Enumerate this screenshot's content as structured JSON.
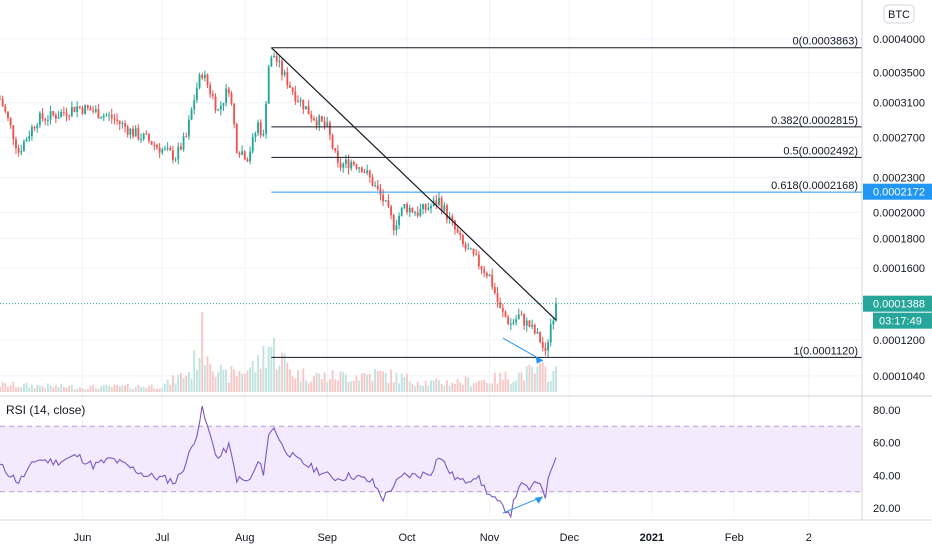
{
  "symbol_badge": "BTC",
  "colors": {
    "up": "#26a69a",
    "down": "#ef5350",
    "up_vol": "#bfe3df",
    "down_vol": "#f7c7c5",
    "fib": "#131722",
    "fib_highlight": "#2196f3",
    "last_price": "#26a69a",
    "countdown": "#26a69a",
    "rsi_line": "#7e57c2",
    "rsi_band": "#f3ebfd",
    "divergence": "#2196f3",
    "grid": "#f0f3fa",
    "axis_text": "#131722"
  },
  "price_axis": {
    "scale": "log",
    "range": [
      9.75e-05,
      0.000418
    ],
    "ticks": [
      "0.0004000",
      "0.0003500",
      "0.0003100",
      "0.0002700",
      "0.0002300",
      "0.0002000",
      "0.0001800",
      "0.0001600",
      "0.0001200",
      "0.0001040"
    ],
    "highlight_label": "0.0002172",
    "last_price_label": "0.0001388",
    "countdown_label": "03:17:49",
    "last_price_value": 0.0001388
  },
  "fib_levels": [
    {
      "label": "0(0.0003863)",
      "value": 0.0003863
    },
    {
      "label": "0.382(0.0002815)",
      "value": 0.0002815
    },
    {
      "label": "0.5(0.0002492)",
      "value": 0.0002492
    },
    {
      "label": "0.618(0.0002168)",
      "value": 0.0002168
    },
    {
      "label": "1(0.0001120)",
      "value": 0.000112
    }
  ],
  "fib_start_date": "2020-08-11",
  "trendline": {
    "start": [
      "2020-08-11",
      0.0003863
    ],
    "end": [
      "2020-11-26",
      0.00013
    ]
  },
  "price_divergence": {
    "start": [
      "2020-11-06",
      0.000121
    ],
    "end": [
      "2020-11-21",
      0.0001105
    ]
  },
  "rsi": {
    "title": "RSI (14, close)",
    "range": [
      14,
      86
    ],
    "ticks": [
      "80.00",
      "60.00",
      "40.00",
      "20.00"
    ],
    "band": [
      30,
      70
    ],
    "divergence": {
      "start": [
        "2020-11-06",
        17
      ],
      "end": [
        "2020-11-21",
        27
      ]
    }
  },
  "time_axis": {
    "range": [
      "2020-05-01",
      "2021-03-21"
    ],
    "ticks": [
      {
        "label": "Jun",
        "date": "2020-06-01"
      },
      {
        "label": "Jul",
        "date": "2020-07-01"
      },
      {
        "label": "Aug",
        "date": "2020-08-01"
      },
      {
        "label": "Sep",
        "date": "2020-09-01"
      },
      {
        "label": "Oct",
        "date": "2020-10-01"
      },
      {
        "label": "Nov",
        "date": "2020-11-01"
      },
      {
        "label": "Dec",
        "date": "2020-12-01"
      },
      {
        "label": "2021",
        "date": "2021-01-01"
      },
      {
        "label": "Feb",
        "date": "2021-02-01"
      },
      {
        "label": "2",
        "date": "2021-03-01"
      }
    ]
  },
  "chart_data": {
    "type": "candlestick",
    "title": "",
    "first_date": "2020-05-01",
    "interval": "1D",
    "price_anchors": [
      [
        "2020-05-01",
        0.000315
      ],
      [
        "2020-05-08",
        0.000255
      ],
      [
        "2020-05-15",
        0.00029
      ],
      [
        "2020-05-22",
        0.000295
      ],
      [
        "2020-05-30",
        0.000305
      ],
      [
        "2020-06-05",
        0.0003
      ],
      [
        "2020-06-12",
        0.000292
      ],
      [
        "2020-06-20",
        0.000275
      ],
      [
        "2020-06-25",
        0.000268
      ],
      [
        "2020-07-02",
        0.000255
      ],
      [
        "2020-07-06",
        0.00025
      ],
      [
        "2020-07-10",
        0.00027
      ],
      [
        "2020-07-14",
        0.00033
      ],
      [
        "2020-07-16",
        0.00035
      ],
      [
        "2020-07-19",
        0.000325
      ],
      [
        "2020-07-22",
        0.0003
      ],
      [
        "2020-07-26",
        0.00033
      ],
      [
        "2020-07-29",
        0.00026
      ],
      [
        "2020-08-02",
        0.00025
      ],
      [
        "2020-08-04",
        0.000265
      ],
      [
        "2020-08-06",
        0.000285
      ],
      [
        "2020-08-08",
        0.00027
      ],
      [
        "2020-08-10",
        0.00036
      ],
      [
        "2020-08-12",
        0.000375
      ],
      [
        "2020-08-15",
        0.00035
      ],
      [
        "2020-08-20",
        0.00032
      ],
      [
        "2020-08-26",
        0.000295
      ],
      [
        "2020-09-01",
        0.00028
      ],
      [
        "2020-09-05",
        0.00024
      ],
      [
        "2020-09-10",
        0.000245
      ],
      [
        "2020-09-14",
        0.00024
      ],
      [
        "2020-09-18",
        0.000225
      ],
      [
        "2020-09-22",
        0.00021
      ],
      [
        "2020-09-26",
        0.00019
      ],
      [
        "2020-09-30",
        0.000205
      ],
      [
        "2020-10-05",
        0.0002
      ],
      [
        "2020-10-10",
        0.000205
      ],
      [
        "2020-10-13",
        0.00021
      ],
      [
        "2020-10-18",
        0.00019
      ],
      [
        "2020-10-22",
        0.000175
      ],
      [
        "2020-10-27",
        0.000165
      ],
      [
        "2020-11-01",
        0.000155
      ],
      [
        "2020-11-05",
        0.000135
      ],
      [
        "2020-11-09",
        0.000128
      ],
      [
        "2020-11-12",
        0.000132
      ],
      [
        "2020-11-16",
        0.000127
      ],
      [
        "2020-11-20",
        0.00012
      ],
      [
        "2020-11-22",
        0.000113
      ],
      [
        "2020-11-24",
        0.000128
      ],
      [
        "2020-11-26",
        0.000138
      ]
    ],
    "rsi_anchors": [
      [
        "2020-05-01",
        46
      ],
      [
        "2020-05-08",
        36
      ],
      [
        "2020-05-15",
        50
      ],
      [
        "2020-05-22",
        48
      ],
      [
        "2020-05-30",
        52
      ],
      [
        "2020-06-05",
        46
      ],
      [
        "2020-06-12",
        50
      ],
      [
        "2020-06-20",
        44
      ],
      [
        "2020-06-25",
        40
      ],
      [
        "2020-07-02",
        38
      ],
      [
        "2020-07-06",
        36
      ],
      [
        "2020-07-10",
        48
      ],
      [
        "2020-07-14",
        66
      ],
      [
        "2020-07-16",
        80
      ],
      [
        "2020-07-19",
        64
      ],
      [
        "2020-07-22",
        50
      ],
      [
        "2020-07-26",
        58
      ],
      [
        "2020-07-29",
        38
      ],
      [
        "2020-08-02",
        36
      ],
      [
        "2020-08-04",
        40
      ],
      [
        "2020-08-06",
        48
      ],
      [
        "2020-08-08",
        42
      ],
      [
        "2020-08-10",
        64
      ],
      [
        "2020-08-12",
        70
      ],
      [
        "2020-08-15",
        58
      ],
      [
        "2020-08-20",
        50
      ],
      [
        "2020-08-26",
        45
      ],
      [
        "2020-09-01",
        40
      ],
      [
        "2020-09-05",
        38
      ],
      [
        "2020-09-10",
        40
      ],
      [
        "2020-09-14",
        38
      ],
      [
        "2020-09-18",
        36
      ],
      [
        "2020-09-22",
        26
      ],
      [
        "2020-09-26",
        34
      ],
      [
        "2020-09-30",
        40
      ],
      [
        "2020-10-05",
        40
      ],
      [
        "2020-10-10",
        42
      ],
      [
        "2020-10-13",
        52
      ],
      [
        "2020-10-18",
        40
      ],
      [
        "2020-10-22",
        36
      ],
      [
        "2020-10-27",
        40
      ],
      [
        "2020-11-01",
        28
      ],
      [
        "2020-11-05",
        22
      ],
      [
        "2020-11-09",
        17
      ],
      [
        "2020-11-12",
        34
      ],
      [
        "2020-11-16",
        32
      ],
      [
        "2020-11-20",
        36
      ],
      [
        "2020-11-22",
        28
      ],
      [
        "2020-11-24",
        44
      ],
      [
        "2020-11-26",
        51
      ]
    ],
    "volume_anchors": [
      [
        "2020-05-01",
        0.12
      ],
      [
        "2020-06-01",
        0.08
      ],
      [
        "2020-07-01",
        0.1
      ],
      [
        "2020-07-12",
        0.35
      ],
      [
        "2020-07-16",
        0.9
      ],
      [
        "2020-07-24",
        0.25
      ],
      [
        "2020-08-06",
        0.45
      ],
      [
        "2020-08-10",
        0.8
      ],
      [
        "2020-08-20",
        0.3
      ],
      [
        "2020-09-01",
        0.25
      ],
      [
        "2020-09-20",
        0.3
      ],
      [
        "2020-10-10",
        0.15
      ],
      [
        "2020-11-01",
        0.2
      ],
      [
        "2020-11-20",
        0.35
      ],
      [
        "2020-11-26",
        0.3
      ]
    ]
  }
}
